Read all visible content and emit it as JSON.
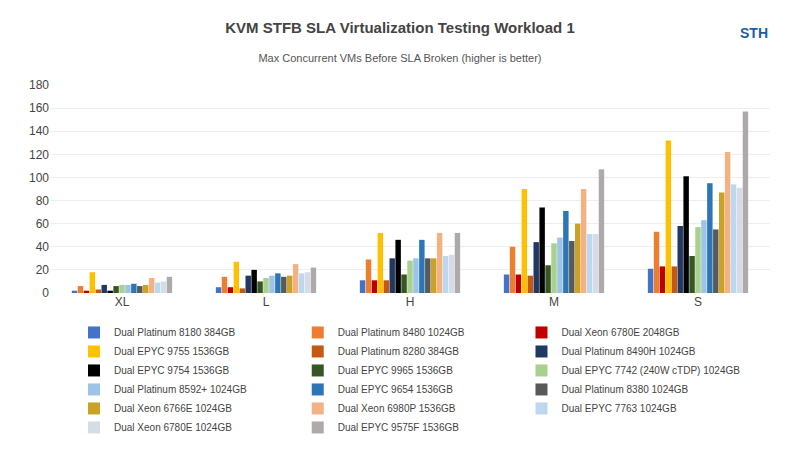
{
  "chart_data": {
    "type": "bar",
    "title": "KVM STFB SLA Virtualization Testing Workload 1",
    "subtitle": "Max Concurrent VMs Before SLA Broken (higher is better)",
    "categories": [
      "XL",
      "L",
      "H",
      "M",
      "S"
    ],
    "series": [
      {
        "name": "Dual Platinum 8180 384GB",
        "color": "#4472C4",
        "values": [
          2,
          5,
          11,
          16,
          21
        ]
      },
      {
        "name": "Dual Platinum 8480 1024GB",
        "color": "#ED7D31",
        "values": [
          6,
          14,
          29,
          40,
          53
        ]
      },
      {
        "name": "Dual Xeon 6780E 2048GB",
        "color": "#C00000",
        "values": [
          2,
          5,
          11,
          16,
          23
        ]
      },
      {
        "name": "Dual EPYC 9755 1536GB",
        "color": "#FFC000",
        "values": [
          18,
          27,
          52,
          90,
          132
        ]
      },
      {
        "name": "Dual Platinum 8280 384GB",
        "color": "#C65911",
        "values": [
          3,
          4,
          11,
          15,
          23
        ]
      },
      {
        "name": "Dual Platinum 8490H 1024GB",
        "color": "#203864",
        "values": [
          7,
          15,
          30,
          44,
          58
        ]
      },
      {
        "name": "Dual EPYC 9754 1536GB",
        "color": "#000000",
        "values": [
          2,
          20,
          46,
          74,
          101
        ]
      },
      {
        "name": "Dual EPYC 9965 1536GB",
        "color": "#375623",
        "values": [
          6,
          10,
          16,
          24,
          32
        ]
      },
      {
        "name": "Dual EPYC 7742 (240W cTDP) 1024GB",
        "color": "#A9D18E",
        "values": [
          7,
          13,
          28,
          43,
          57
        ]
      },
      {
        "name": "Dual Platinum 8592+ 1024GB",
        "color": "#9DC3E6",
        "values": [
          7,
          15,
          30,
          48,
          63
        ]
      },
      {
        "name": "Dual EPYC 9654 1536GB",
        "color": "#2E75B6",
        "values": [
          8,
          17,
          46,
          71,
          95
        ]
      },
      {
        "name": "Dual Platinum 8380 1024GB",
        "color": "#595959",
        "values": [
          6,
          14,
          30,
          45,
          55
        ]
      },
      {
        "name": "Dual Xeon 6766E 1024GB",
        "color": "#C9A227",
        "values": [
          7,
          15,
          30,
          60,
          87
        ]
      },
      {
        "name": "Dual Xeon 6980P 1536GB",
        "color": "#F4B183",
        "values": [
          13,
          25,
          52,
          90,
          122
        ]
      },
      {
        "name": "Dual EPYC 7763 1024GB",
        "color": "#BDD7EE",
        "values": [
          9,
          17,
          32,
          51,
          94
        ]
      },
      {
        "name": "Dual Xeon 6780E 1024GB",
        "color": "#D6DCE4",
        "values": [
          10,
          18,
          33,
          51,
          91
        ]
      },
      {
        "name": "Dual EPYC 9575F 1536GB",
        "color": "#AEAAAA",
        "values": [
          14,
          22,
          52,
          107,
          157
        ]
      }
    ],
    "ylim": [
      0,
      180
    ],
    "yticks": [
      0,
      20,
      40,
      60,
      80,
      100,
      120,
      140,
      160,
      180
    ],
    "grid": true,
    "legend": "bottom",
    "annotations": [
      {
        "text": "STH"
      }
    ]
  }
}
